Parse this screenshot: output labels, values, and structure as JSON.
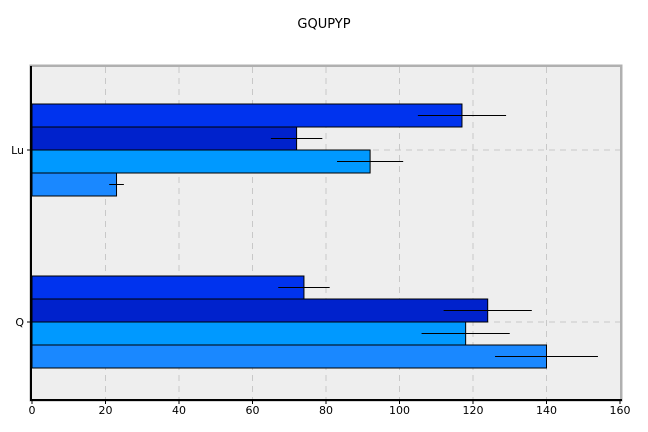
{
  "chart_data": {
    "type": "bar",
    "orientation": "horizontal",
    "title": "GQUPYP",
    "xlabel": "",
    "ylabel": "",
    "xlim": [
      0,
      160
    ],
    "xticks": [
      0,
      20,
      40,
      60,
      80,
      100,
      120,
      140,
      160
    ],
    "grid": true,
    "categories": [
      "Lu",
      "Q"
    ],
    "series": [
      {
        "color": "#0033ee",
        "values": [
          117,
          74
        ],
        "errors": [
          12,
          7
        ]
      },
      {
        "color": "#0022cc",
        "values": [
          72,
          124
        ],
        "errors": [
          7,
          12
        ]
      },
      {
        "color": "#0099ff",
        "values": [
          92,
          118
        ],
        "errors": [
          9,
          12
        ]
      },
      {
        "color": "#1a88ff",
        "values": [
          23,
          140
        ],
        "errors": [
          2,
          14
        ]
      }
    ]
  }
}
